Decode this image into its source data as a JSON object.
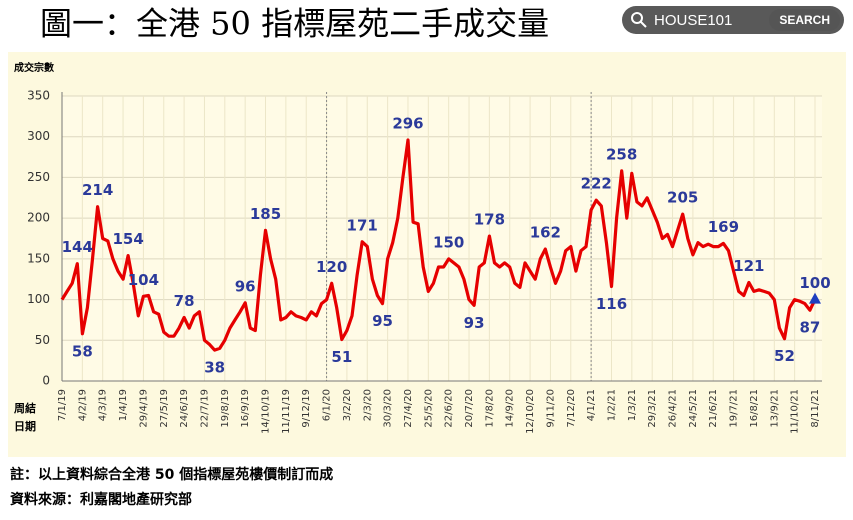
{
  "chart_data": {
    "type": "line",
    "title": "圖一：全港 50 指標屋苑二手成交量",
    "y_label": "成交宗數",
    "x_label": [
      "周結",
      "日期"
    ],
    "categories": [
      "7/1/19",
      null,
      null,
      null,
      "4/2/19",
      null,
      null,
      null,
      "4/3/19",
      null,
      null,
      null,
      "1/4/19",
      null,
      null,
      null,
      "29/4/19",
      null,
      null,
      null,
      "27/5/19",
      null,
      null,
      null,
      "24/6/19",
      null,
      null,
      null,
      "22/7/19",
      null,
      null,
      null,
      "19/8/19",
      null,
      null,
      null,
      "16/9/19",
      null,
      null,
      null,
      "14/10/19",
      null,
      null,
      null,
      "11/11/19",
      null,
      null,
      null,
      "9/12/19",
      null,
      null,
      null,
      "6/1/20",
      null,
      null,
      null,
      "3/2/20",
      null,
      null,
      null,
      "2/3/20",
      null,
      null,
      null,
      "30/3/20",
      null,
      null,
      null,
      "27/4/20",
      null,
      null,
      null,
      "25/5/20",
      null,
      null,
      null,
      "22/6/20",
      null,
      null,
      null,
      "20/7/20",
      null,
      null,
      null,
      "17/8/20",
      null,
      null,
      null,
      "14/9/20",
      null,
      null,
      null,
      "12/10/20",
      null,
      null,
      null,
      "9/11/20",
      null,
      null,
      null,
      "7/12/20",
      null,
      null,
      null,
      "4/1/21",
      null,
      null,
      null,
      "1/2/21",
      null,
      null,
      null,
      "1/3/21",
      null,
      null,
      null,
      "29/3/21",
      null,
      null,
      null,
      "26/4/21",
      null,
      null,
      null,
      "24/5/21",
      null,
      null,
      null,
      "21/6/21",
      null,
      null,
      null,
      "19/7/21",
      null,
      null,
      null,
      "16/8/21",
      null,
      null,
      null,
      "13/9/21",
      null,
      null,
      null,
      "11/10/21",
      null,
      null,
      null,
      "8/11/21"
    ],
    "series": [
      {
        "color": "#e60000",
        "marker_color": "#1f3fbf",
        "label_color": "#2b3a9a",
        "values": [
          100,
          110,
          120,
          144,
          58,
          90,
          150,
          214,
          175,
          172,
          150,
          135,
          125,
          154,
          120,
          80,
          104,
          105,
          85,
          82,
          60,
          55,
          55,
          65,
          78,
          65,
          80,
          85,
          50,
          45,
          38,
          40,
          50,
          65,
          75,
          85,
          96,
          65,
          62,
          130,
          185,
          150,
          125,
          75,
          78,
          85,
          80,
          78,
          75,
          85,
          80,
          95,
          100,
          120,
          90,
          51,
          62,
          80,
          130,
          171,
          165,
          125,
          105,
          95,
          150,
          170,
          200,
          250,
          296,
          195,
          193,
          140,
          110,
          120,
          140,
          140,
          150,
          145,
          140,
          125,
          100,
          93,
          140,
          145,
          178,
          145,
          140,
          145,
          140,
          120,
          115,
          145,
          135,
          125,
          150,
          162,
          140,
          120,
          135,
          160,
          165,
          135,
          160,
          165,
          210,
          222,
          215,
          170,
          116,
          200,
          258,
          200,
          255,
          220,
          215,
          225,
          210,
          195,
          175,
          180,
          165,
          185,
          205,
          175,
          155,
          170,
          165,
          168,
          165,
          165,
          169,
          160,
          135,
          110,
          105,
          121,
          110,
          112,
          110,
          108,
          100,
          65,
          52,
          90,
          100,
          98,
          95,
          87,
          100
        ],
        "value_labels": [
          null,
          null,
          null,
          "144",
          "58",
          null,
          null,
          "214",
          null,
          null,
          null,
          null,
          null,
          "154",
          null,
          null,
          "104",
          null,
          null,
          null,
          null,
          null,
          null,
          null,
          "78",
          null,
          null,
          null,
          null,
          null,
          "38",
          null,
          null,
          null,
          null,
          null,
          "96",
          null,
          null,
          null,
          "185",
          null,
          null,
          null,
          null,
          null,
          null,
          null,
          null,
          null,
          null,
          null,
          null,
          "120",
          null,
          "51",
          null,
          null,
          null,
          "171",
          null,
          null,
          null,
          "95",
          null,
          null,
          null,
          null,
          "296",
          null,
          null,
          null,
          null,
          null,
          null,
          null,
          "150",
          null,
          null,
          null,
          null,
          "93",
          null,
          null,
          "178",
          null,
          null,
          null,
          null,
          null,
          null,
          null,
          null,
          null,
          null,
          "162",
          null,
          null,
          null,
          null,
          null,
          null,
          null,
          null,
          null,
          "222",
          null,
          null,
          "116",
          null,
          "258",
          null,
          null,
          null,
          null,
          null,
          null,
          null,
          null,
          null,
          null,
          null,
          "205",
          null,
          null,
          null,
          null,
          null,
          null,
          null,
          "169",
          null,
          null,
          null,
          null,
          "121",
          null,
          null,
          null,
          null,
          null,
          null,
          "52",
          null,
          null,
          null,
          null,
          "87",
          "100"
        ]
      }
    ],
    "ylim": [
      0,
      350
    ],
    "yticks": [
      0,
      50,
      100,
      150,
      200,
      250,
      300,
      350
    ],
    "grid": true,
    "notes": [
      "註：以上資料綜合全港 50 個指標屋苑樓價制訂而成",
      "資料來源：利嘉閣地產研究部"
    ]
  },
  "search": {
    "placeholder": "HOUSE101",
    "button": "SEARCH"
  }
}
